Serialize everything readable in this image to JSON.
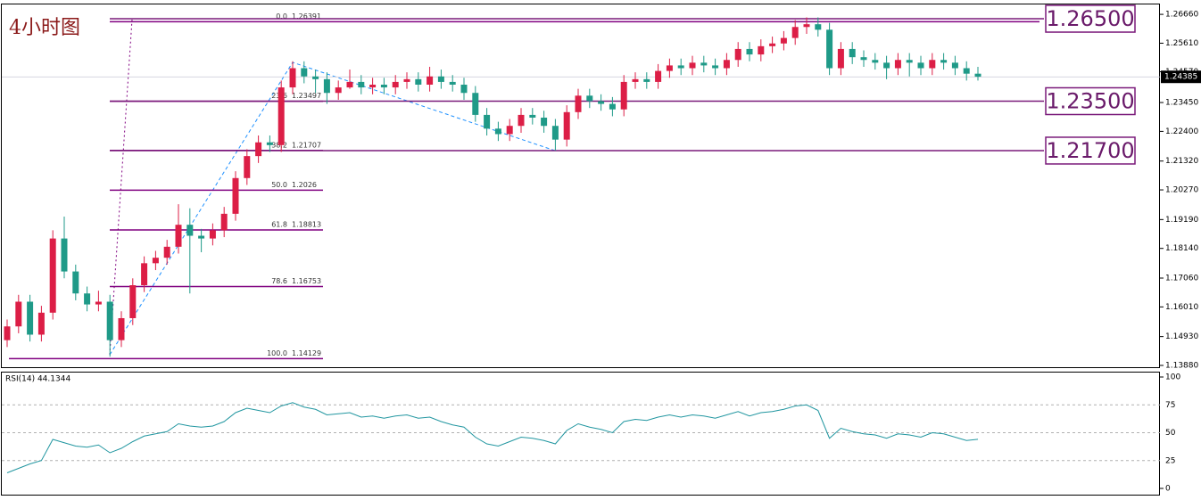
{
  "chart_data": {
    "type": "candlestick",
    "title": "4小时图",
    "up_color": "#dc1e46",
    "down_color": "#1f9a88",
    "open": [
      1.148,
      1.153,
      1.162,
      1.15,
      1.158,
      1.185,
      1.173,
      1.165,
      1.161,
      1.162,
      1.148,
      1.156,
      1.168,
      1.176,
      1.178,
      1.182,
      1.19,
      1.186,
      1.185,
      1.188,
      1.194,
      1.207,
      1.215,
      1.22,
      1.219,
      1.24,
      1.247,
      1.244,
      1.243,
      1.238,
      1.24,
      1.242,
      1.24,
      1.241,
      1.24,
      1.242,
      1.243,
      1.241,
      1.244,
      1.242,
      1.241,
      1.238,
      1.23,
      1.225,
      1.223,
      1.226,
      1.23,
      1.229,
      1.226,
      1.221,
      1.231,
      1.237,
      1.235,
      1.234,
      1.232,
      1.242,
      1.243,
      1.242,
      1.246,
      1.248,
      1.247,
      1.249,
      1.248,
      1.247,
      1.25,
      1.254,
      1.252,
      1.255,
      1.256,
      1.258,
      1.262,
      1.263,
      1.261,
      1.247,
      1.254,
      1.251,
      1.25,
      1.249,
      1.247,
      1.25,
      1.249,
      1.247,
      1.25,
      1.249,
      1.247,
      1.245
    ],
    "high": [
      1.1555,
      1.1645,
      1.1645,
      1.1605,
      1.188,
      1.193,
      1.1755,
      1.1675,
      1.166,
      1.1645,
      1.1585,
      1.1705,
      1.1785,
      1.1805,
      1.1845,
      1.1975,
      1.196,
      1.1885,
      1.1905,
      1.1965,
      1.2095,
      1.2175,
      1.2225,
      1.2225,
      1.2425,
      1.2495,
      1.2495,
      1.2465,
      1.2455,
      1.2425,
      1.2465,
      1.2445,
      1.2435,
      1.2435,
      1.2445,
      1.2455,
      1.2455,
      1.2475,
      1.2465,
      1.2445,
      1.2435,
      1.2405,
      1.2325,
      1.2275,
      1.2285,
      1.2325,
      1.2325,
      1.2315,
      1.2285,
      1.2335,
      1.2395,
      1.2395,
      1.2375,
      1.2365,
      1.2445,
      1.2455,
      1.2455,
      1.2485,
      1.2505,
      1.2505,
      1.2515,
      1.2515,
      1.2505,
      1.2525,
      1.2565,
      1.2565,
      1.2575,
      1.2585,
      1.2605,
      1.2645,
      1.2655,
      1.2655,
      1.2635,
      1.2565,
      1.2565,
      1.2535,
      1.2525,
      1.2515,
      1.2525,
      1.2525,
      1.2515,
      1.2525,
      1.2525,
      1.2515,
      1.2495,
      1.2475
    ],
    "low": [
      1.1455,
      1.1505,
      1.1475,
      1.1475,
      1.1555,
      1.1705,
      1.1625,
      1.1585,
      1.1585,
      1.142,
      1.1455,
      1.1535,
      1.1655,
      1.1735,
      1.1755,
      1.1795,
      1.165,
      1.18,
      1.1825,
      1.1855,
      1.1915,
      1.2045,
      1.2125,
      1.2165,
      1.2165,
      1.2375,
      1.2415,
      1.238,
      1.234,
      1.2355,
      1.2395,
      1.2375,
      1.2375,
      1.2375,
      1.2375,
      1.2395,
      1.2385,
      1.2385,
      1.2395,
      1.2385,
      1.2355,
      1.2275,
      1.2225,
      1.2205,
      1.2205,
      1.2235,
      1.2265,
      1.2235,
      1.217,
      1.2185,
      1.2285,
      1.2325,
      1.2315,
      1.2295,
      1.2295,
      1.2395,
      1.2395,
      1.2395,
      1.2435,
      1.2445,
      1.2445,
      1.2455,
      1.2445,
      1.2445,
      1.2475,
      1.2495,
      1.2495,
      1.2525,
      1.2535,
      1.2555,
      1.2595,
      1.2585,
      1.2445,
      1.2445,
      1.2485,
      1.2475,
      1.2465,
      1.243,
      1.2445,
      1.244,
      1.2445,
      1.2445,
      1.2465,
      1.2445,
      1.2425,
      1.2425
    ],
    "close": [
      1.153,
      1.162,
      1.15,
      1.158,
      1.185,
      1.173,
      1.165,
      1.161,
      1.162,
      1.148,
      1.156,
      1.168,
      1.176,
      1.178,
      1.182,
      1.19,
      1.186,
      1.185,
      1.188,
      1.194,
      1.207,
      1.215,
      1.22,
      1.219,
      1.24,
      1.247,
      1.244,
      1.243,
      1.238,
      1.24,
      1.242,
      1.24,
      1.241,
      1.24,
      1.242,
      1.243,
      1.241,
      1.244,
      1.242,
      1.241,
      1.238,
      1.23,
      1.225,
      1.223,
      1.226,
      1.23,
      1.229,
      1.226,
      1.221,
      1.231,
      1.237,
      1.235,
      1.234,
      1.232,
      1.242,
      1.243,
      1.242,
      1.246,
      1.248,
      1.247,
      1.249,
      1.248,
      1.247,
      1.25,
      1.254,
      1.252,
      1.255,
      1.256,
      1.258,
      1.262,
      1.263,
      1.261,
      1.247,
      1.254,
      1.251,
      1.25,
      1.249,
      1.247,
      1.25,
      1.249,
      1.247,
      1.25,
      1.249,
      1.247,
      1.245,
      1.2439
    ],
    "ylim": [
      1.1388,
      1.2702
    ],
    "yticks": [
      {
        "value": 1.2666,
        "label": "1.26660"
      },
      {
        "value": 1.2561,
        "label": "1.25610"
      },
      {
        "value": 1.2457,
        "label": "1.24570"
      },
      {
        "value": 1.2345,
        "label": "1.23450"
      },
      {
        "value": 1.224,
        "label": "1.22400"
      },
      {
        "value": 1.2132,
        "label": "1.21320"
      },
      {
        "value": 1.2027,
        "label": "1.20270"
      },
      {
        "value": 1.1919,
        "label": "1.19190"
      },
      {
        "value": 1.1814,
        "label": "1.18140"
      },
      {
        "value": 1.1706,
        "label": "1.17060"
      },
      {
        "value": 1.1601,
        "label": "1.16010"
      },
      {
        "value": 1.1493,
        "label": "1.14930"
      },
      {
        "value": 1.1388,
        "label": "1.13880"
      }
    ],
    "last_price": 1.24385,
    "fibonacci": {
      "color": "#800080",
      "levels": [
        {
          "ratio": "0.0",
          "price": 1.26391
        },
        {
          "ratio": "23.6",
          "price": 1.23497
        },
        {
          "ratio": "38.2",
          "price": 1.21707
        },
        {
          "ratio": "50.0",
          "price": 1.2026
        },
        {
          "ratio": "61.8",
          "price": 1.18813
        },
        {
          "ratio": "78.6",
          "price": 1.16753
        },
        {
          "ratio": "100.0",
          "price": 1.14129
        }
      ]
    },
    "levels": {
      "color": "#7a1a7a",
      "lines": [
        {
          "value": 1.265,
          "label": "1.26500"
        },
        {
          "value": 1.235,
          "label": "1.23500"
        },
        {
          "value": 1.217,
          "label": "1.21700"
        }
      ]
    },
    "indicator": {
      "type": "line",
      "label": "RSI(14) 44.1344",
      "color": "#2196a0",
      "values": [
        14,
        18,
        22,
        25,
        44,
        41,
        38,
        37,
        39,
        32,
        36,
        42,
        47,
        49,
        51,
        58,
        56,
        55,
        56,
        60,
        68,
        72,
        70,
        68,
        74,
        77,
        73,
        71,
        66,
        67,
        68,
        64,
        65,
        63,
        65,
        66,
        63,
        64,
        60,
        57,
        55,
        46,
        40,
        38,
        42,
        46,
        45,
        43,
        40,
        52,
        58,
        55,
        53,
        50,
        60,
        62,
        61,
        64,
        66,
        64,
        66,
        65,
        63,
        66,
        69,
        65,
        68,
        69,
        71,
        74,
        75,
        70,
        45,
        54,
        51,
        49,
        48,
        45,
        49,
        48,
        46,
        50,
        49,
        46,
        43,
        44.1344
      ],
      "ylim": [
        0,
        100
      ],
      "yticks": [
        100,
        75,
        50,
        25,
        0
      ],
      "grid": true
    }
  }
}
